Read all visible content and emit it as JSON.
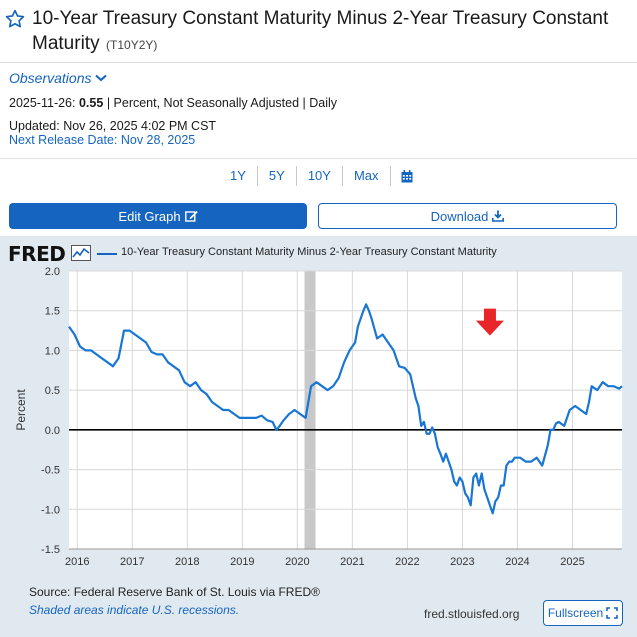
{
  "series": {
    "title": "10-Year Treasury Constant Maturity Minus 2-Year Treasury Constant Maturity",
    "code": "(T10Y2Y)"
  },
  "observations": {
    "toggle_label": "Observations",
    "date": "2025-11-26:",
    "value": "0.55",
    "detail": "| Percent, Not Seasonally Adjusted | Daily",
    "updated": "Updated: Nov 26, 2025 4:02 PM CST",
    "next_release": "Next Release Date: Nov 28, 2025"
  },
  "ranges": [
    "1Y",
    "5Y",
    "10Y",
    "Max"
  ],
  "buttons": {
    "edit_graph": "Edit Graph",
    "download": "Download",
    "fullscreen": "Fullscreen"
  },
  "graph": {
    "logo": "FRED",
    "legend": "10-Year Treasury Constant Maturity Minus 2-Year Treasury Constant Maturity",
    "source": "Source: Federal Reserve Bank of St. Louis via FRED®",
    "shade_note": "Shaded areas indicate U.S. recessions.",
    "url": "fred.stlouisfed.org"
  },
  "colors": {
    "accent": "#1565c0",
    "line": "#1976d2",
    "recession": "#c8c8c8",
    "arrow": "#e8262a",
    "background": "#e1e9f0"
  },
  "chart_data": {
    "type": "line",
    "title": "10-Year Treasury Constant Maturity Minus 2-Year Treasury Constant Maturity",
    "xlabel": "",
    "ylabel": "Percent",
    "xlim": [
      2015.85,
      2025.9
    ],
    "ylim": [
      -1.5,
      2.0
    ],
    "yticks": [
      2.0,
      1.5,
      1.0,
      0.5,
      0.0,
      -0.5,
      -1.0,
      -1.5
    ],
    "ytick_labels": [
      "2.0",
      "1.5",
      "1.0",
      "0.5",
      "0.0",
      "-0.5",
      "-1.0",
      "-1.5"
    ],
    "xticks": [
      2016,
      2017,
      2018,
      2019,
      2020,
      2021,
      2022,
      2023,
      2024,
      2025
    ],
    "xtick_labels": [
      "2016",
      "2017",
      "2018",
      "2019",
      "2020",
      "2021",
      "2022",
      "2023",
      "2024",
      "2025"
    ],
    "reference_line": 0.0,
    "recessions": [
      [
        2020.13,
        2020.33
      ]
    ],
    "annotation": {
      "type": "arrow-down",
      "x": 2023.5,
      "y": 1.35
    },
    "series": [
      {
        "name": "T10Y2Y",
        "x": [
          2015.85,
          2015.95,
          2016.05,
          2016.15,
          2016.25,
          2016.35,
          2016.45,
          2016.55,
          2016.65,
          2016.75,
          2016.85,
          2016.95,
          2017.05,
          2017.15,
          2017.25,
          2017.35,
          2017.45,
          2017.55,
          2017.65,
          2017.75,
          2017.85,
          2017.95,
          2018.05,
          2018.15,
          2018.25,
          2018.35,
          2018.45,
          2018.55,
          2018.65,
          2018.75,
          2018.85,
          2018.95,
          2019.05,
          2019.15,
          2019.25,
          2019.35,
          2019.45,
          2019.55,
          2019.62,
          2019.68,
          2019.75,
          2019.85,
          2019.95,
          2020.05,
          2020.15,
          2020.25,
          2020.35,
          2020.45,
          2020.55,
          2020.65,
          2020.75,
          2020.85,
          2020.95,
          2021.05,
          2021.1,
          2021.15,
          2021.2,
          2021.25,
          2021.3,
          2021.35,
          2021.45,
          2021.55,
          2021.65,
          2021.75,
          2021.85,
          2021.95,
          2022.05,
          2022.15,
          2022.2,
          2022.25,
          2022.3,
          2022.35,
          2022.4,
          2022.45,
          2022.5,
          2022.55,
          2022.6,
          2022.65,
          2022.7,
          2022.75,
          2022.8,
          2022.85,
          2022.9,
          2022.95,
          2023.0,
          2023.05,
          2023.1,
          2023.15,
          2023.2,
          2023.25,
          2023.3,
          2023.35,
          2023.4,
          2023.45,
          2023.5,
          2023.55,
          2023.6,
          2023.65,
          2023.7,
          2023.75,
          2023.8,
          2023.85,
          2023.9,
          2023.95,
          2024.05,
          2024.15,
          2024.25,
          2024.35,
          2024.45,
          2024.55,
          2024.6,
          2024.65,
          2024.7,
          2024.75,
          2024.85,
          2024.95,
          2025.05,
          2025.15,
          2025.25,
          2025.3,
          2025.35,
          2025.45,
          2025.55,
          2025.65,
          2025.75,
          2025.85,
          2025.9
        ],
        "values": [
          1.3,
          1.2,
          1.05,
          1.0,
          1.0,
          0.95,
          0.9,
          0.85,
          0.8,
          0.9,
          1.25,
          1.25,
          1.2,
          1.15,
          1.1,
          0.98,
          0.95,
          0.95,
          0.85,
          0.8,
          0.75,
          0.6,
          0.55,
          0.6,
          0.5,
          0.45,
          0.35,
          0.3,
          0.25,
          0.25,
          0.2,
          0.15,
          0.15,
          0.15,
          0.15,
          0.18,
          0.12,
          0.1,
          0.0,
          0.05,
          0.12,
          0.2,
          0.25,
          0.2,
          0.15,
          0.55,
          0.6,
          0.55,
          0.5,
          0.55,
          0.65,
          0.85,
          1.0,
          1.1,
          1.3,
          1.4,
          1.5,
          1.58,
          1.5,
          1.4,
          1.15,
          1.2,
          1.1,
          1.0,
          0.8,
          0.78,
          0.7,
          0.4,
          0.3,
          0.05,
          0.1,
          -0.05,
          -0.05,
          0.03,
          -0.05,
          -0.22,
          -0.3,
          -0.4,
          -0.3,
          -0.4,
          -0.5,
          -0.65,
          -0.7,
          -0.6,
          -0.65,
          -0.8,
          -0.85,
          -0.95,
          -0.6,
          -0.55,
          -0.7,
          -0.55,
          -0.75,
          -0.85,
          -0.95,
          -1.05,
          -0.9,
          -0.85,
          -0.7,
          -0.7,
          -0.45,
          -0.4,
          -0.4,
          -0.35,
          -0.35,
          -0.4,
          -0.4,
          -0.35,
          -0.45,
          -0.2,
          0.0,
          0.0,
          0.08,
          0.1,
          0.05,
          0.25,
          0.3,
          0.25,
          0.2,
          0.35,
          0.55,
          0.5,
          0.6,
          0.55,
          0.55,
          0.52,
          0.55
        ]
      }
    ]
  }
}
